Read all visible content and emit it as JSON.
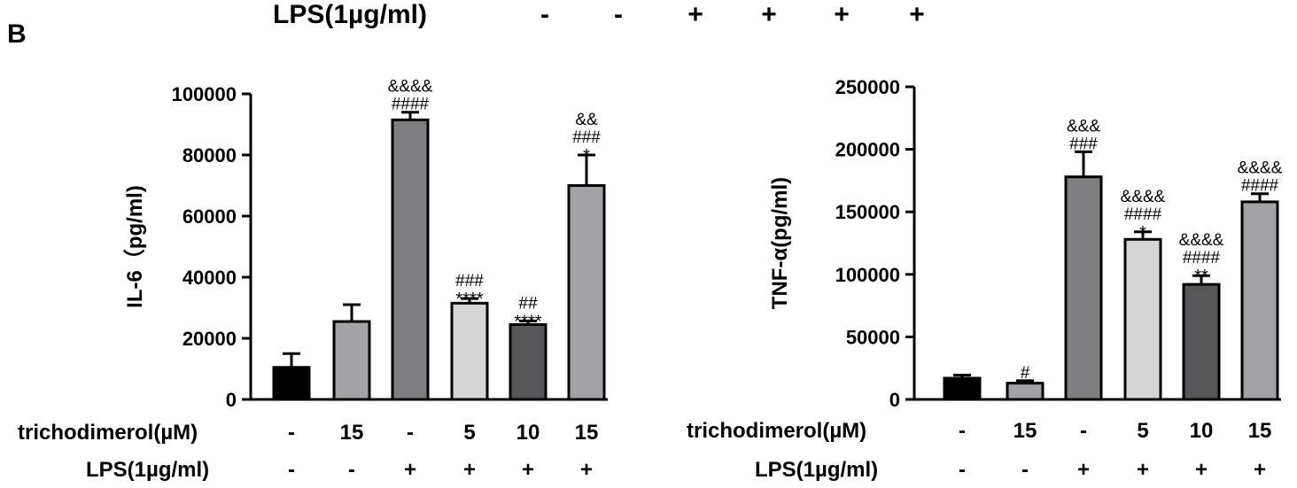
{
  "panel_letter": "B",
  "top_header": {
    "lps_label": "LPS(1µg/ml)",
    "signs": [
      "-",
      "-",
      "+",
      "+",
      "+",
      "+"
    ]
  },
  "colors": {
    "black": "#000000",
    "light_gray": "#a3a3a7",
    "medium_gray": "#7f7f81",
    "pale_gray": "#d6d6d6",
    "dark_gray": "#575759"
  },
  "chart_data": [
    {
      "type": "bar",
      "ylabel": "IL-6（pg/ml)",
      "ylim": [
        0,
        100000
      ],
      "yticks": [
        "0",
        "20000",
        "40000",
        "60000",
        "80000",
        "100000"
      ],
      "tick_values": [
        0,
        20000,
        40000,
        60000,
        80000,
        100000
      ],
      "row_labels": {
        "treatment": "trichodimerol(µM)",
        "lps": "LPS(1µg/ml)"
      },
      "treatment": [
        "-",
        "15",
        "-",
        "5",
        "10",
        "15"
      ],
      "lps": [
        "-",
        "-",
        "+",
        "+",
        "+",
        "+"
      ],
      "values": [
        10500,
        25500,
        91500,
        31500,
        24500,
        70000
      ],
      "errors": [
        4500,
        5500,
        2500,
        1500,
        1200,
        10000
      ],
      "bar_colors": [
        "#000000",
        "#a3a3a7",
        "#7f7f81",
        "#d6d6d6",
        "#575759",
        "#a3a3a7"
      ],
      "annotations": [
        [],
        [],
        [
          "&&&&",
          "####"
        ],
        [
          "###",
          "****"
        ],
        [
          "##",
          "****"
        ],
        [
          "&&",
          "###",
          "*"
        ]
      ]
    },
    {
      "type": "bar",
      "ylabel": "TNF-α(pg/ml)",
      "ylim": [
        0,
        250000
      ],
      "yticks": [
        "0",
        "50000",
        "100000",
        "150000",
        "200000",
        "250000"
      ],
      "tick_values": [
        0,
        50000,
        100000,
        150000,
        200000,
        250000
      ],
      "row_labels": {
        "treatment": "trichodimerol(µM)",
        "lps": "LPS(1µg/ml)"
      },
      "treatment": [
        "-",
        "15",
        "-",
        "5",
        "10",
        "15"
      ],
      "lps": [
        "-",
        "-",
        "+",
        "+",
        "+",
        "+"
      ],
      "values": [
        17000,
        13000,
        178000,
        128000,
        92000,
        158000
      ],
      "errors": [
        2500,
        2000,
        20000,
        6000,
        7000,
        6500
      ],
      "bar_colors": [
        "#000000",
        "#a3a3a7",
        "#7f7f81",
        "#d6d6d6",
        "#575759",
        "#a3a3a7"
      ],
      "annotations": [
        [],
        [
          "#"
        ],
        [
          "&&&",
          "###"
        ],
        [
          "&&&&",
          "####",
          "*"
        ],
        [
          "&&&&",
          "####",
          "**"
        ],
        [
          "&&&&",
          "####"
        ]
      ]
    }
  ]
}
